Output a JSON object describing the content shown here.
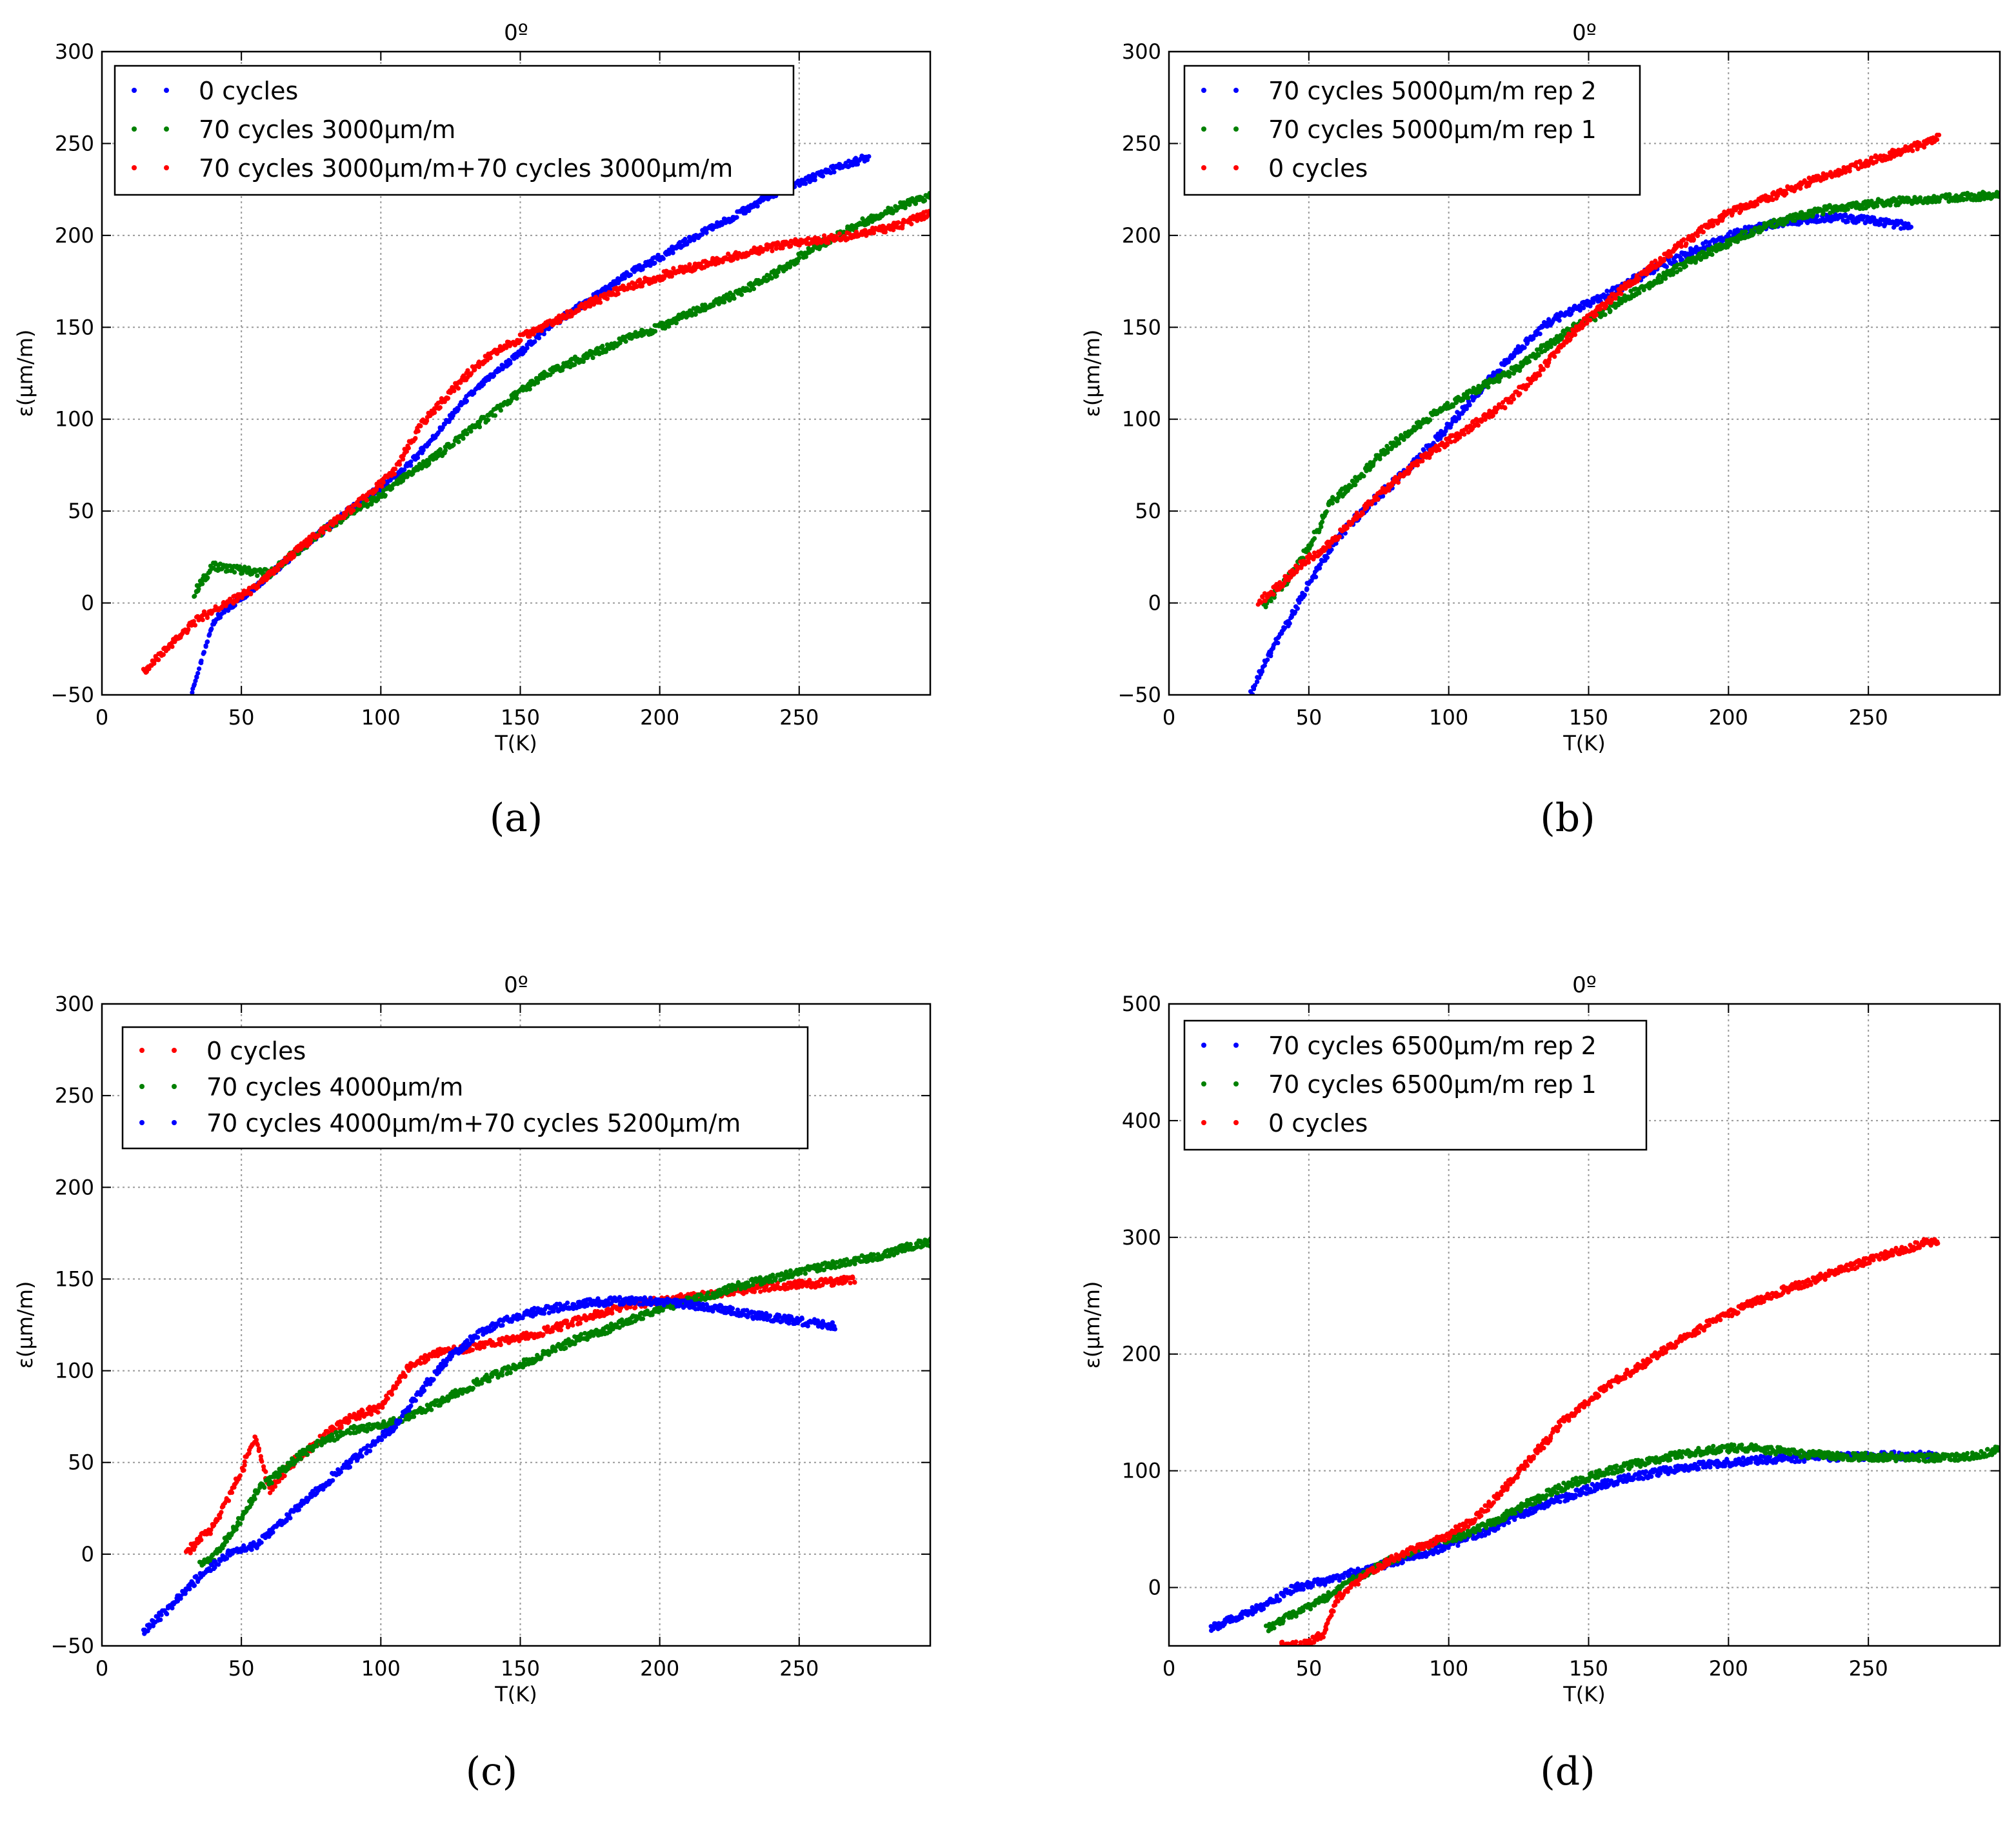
{
  "figure": {
    "panels": [
      "(a)",
      "(b)",
      "(c)",
      "(d)"
    ]
  },
  "chart_data": [
    {
      "type": "scatter",
      "panel_label": "(a)",
      "title": "0º",
      "xlabel": "T(K)",
      "ylabel": "ε(μm/m)",
      "xlim": [
        0,
        297
      ],
      "ylim": [
        -50,
        300
      ],
      "xticks": [
        0,
        50,
        100,
        150,
        200,
        250
      ],
      "yticks": [
        -50,
        0,
        50,
        100,
        150,
        200,
        250,
        300
      ],
      "grid": true,
      "legend_position": "top-left",
      "series": [
        {
          "name": "0 cycles",
          "color": "#0000ff",
          "x": [
            32,
            40,
            50,
            60,
            70,
            80,
            90,
            100,
            110,
            120,
            130,
            140,
            150,
            160,
            170,
            180,
            190,
            200,
            210,
            220,
            230,
            240,
            250,
            260,
            270,
            275
          ],
          "y": [
            -50,
            -10,
            3,
            15,
            28,
            40,
            52,
            63,
            75,
            92,
            110,
            124,
            136,
            150,
            160,
            170,
            180,
            188,
            197,
            205,
            213,
            222,
            228,
            235,
            240,
            243
          ]
        },
        {
          "name": "70 cycles 3000μm/m",
          "color": "#008000",
          "x": [
            33,
            40,
            50,
            60,
            70,
            80,
            90,
            100,
            110,
            120,
            130,
            140,
            150,
            160,
            170,
            180,
            190,
            200,
            210,
            220,
            230,
            240,
            250,
            260,
            270,
            280,
            290,
            297
          ],
          "y": [
            5,
            20,
            18,
            16,
            28,
            40,
            50,
            58,
            70,
            80,
            92,
            103,
            115,
            125,
            132,
            138,
            145,
            150,
            157,
            163,
            170,
            178,
            188,
            197,
            205,
            212,
            218,
            221
          ]
        },
        {
          "name": "70 cycles 3000μm/m+70 cycles 3000μm/m",
          "color": "#ff0000",
          "x": [
            15,
            25,
            35,
            45,
            55,
            65,
            75,
            85,
            95,
            105,
            115,
            125,
            135,
            145,
            155,
            165,
            175,
            185,
            195,
            205,
            215,
            225,
            235,
            245,
            255,
            265,
            275,
            285,
            297
          ],
          "y": [
            -38,
            -22,
            -8,
            0,
            8,
            22,
            35,
            46,
            58,
            72,
            98,
            115,
            130,
            140,
            148,
            155,
            163,
            170,
            175,
            180,
            184,
            188,
            192,
            195,
            197,
            199,
            202,
            205,
            212
          ]
        }
      ]
    },
    {
      "type": "scatter",
      "panel_label": "(b)",
      "title": "0º",
      "xlabel": "T(K)",
      "ylabel": "ε(μm/m)",
      "xlim": [
        0,
        297
      ],
      "ylim": [
        -50,
        300
      ],
      "xticks": [
        0,
        50,
        100,
        150,
        200,
        250
      ],
      "yticks": [
        -50,
        0,
        50,
        100,
        150,
        200,
        250,
        300
      ],
      "grid": true,
      "legend_position": "top-left",
      "series": [
        {
          "name": "70 cycles 5000μm/m rep 2",
          "color": "#0000ff",
          "x": [
            29,
            35,
            42,
            50,
            58,
            66,
            75,
            85,
            95,
            105,
            115,
            125,
            135,
            145,
            155,
            165,
            175,
            185,
            195,
            205,
            215,
            225,
            235,
            245,
            255,
            265
          ],
          "y": [
            -50,
            -30,
            -12,
            10,
            30,
            45,
            58,
            72,
            88,
            105,
            122,
            138,
            152,
            160,
            166,
            175,
            183,
            190,
            197,
            202,
            206,
            208,
            210,
            209,
            207,
            205
          ]
        },
        {
          "name": "70 cycles 5000μm/m rep 1",
          "color": "#008000",
          "x": [
            34,
            42,
            50,
            58,
            66,
            75,
            85,
            95,
            105,
            115,
            125,
            135,
            145,
            155,
            165,
            175,
            185,
            195,
            205,
            215,
            225,
            235,
            245,
            255,
            265,
            275,
            285,
            297
          ],
          "y": [
            -2,
            12,
            30,
            55,
            65,
            80,
            92,
            103,
            112,
            120,
            128,
            140,
            150,
            158,
            168,
            176,
            185,
            192,
            200,
            206,
            210,
            214,
            216,
            218,
            219,
            220,
            221,
            222
          ]
        },
        {
          "name": "0 cycles",
          "color": "#ff0000",
          "x": [
            32,
            40,
            48,
            56,
            64,
            72,
            80,
            90,
            100,
            110,
            120,
            130,
            140,
            150,
            160,
            170,
            180,
            190,
            200,
            210,
            220,
            230,
            240,
            250,
            260,
            270,
            275
          ],
          "y": [
            0,
            10,
            22,
            30,
            42,
            55,
            65,
            78,
            88,
            98,
            108,
            122,
            140,
            155,
            168,
            180,
            192,
            202,
            212,
            218,
            224,
            230,
            235,
            240,
            245,
            250,
            253
          ]
        }
      ]
    },
    {
      "type": "scatter",
      "panel_label": "(c)",
      "title": "0º",
      "xlabel": "T(K)",
      "ylabel": "ε(μm/m)",
      "xlim": [
        0,
        297
      ],
      "ylim": [
        -50,
        300
      ],
      "xticks": [
        0,
        50,
        100,
        150,
        200,
        250
      ],
      "yticks": [
        -50,
        0,
        50,
        100,
        150,
        200,
        250,
        300
      ],
      "grid": true,
      "legend_position": "top-left",
      "series": [
        {
          "name": "0 cycles",
          "color": "#ff0000",
          "x": [
            30,
            35,
            40,
            45,
            50,
            55,
            60,
            70,
            80,
            90,
            100,
            110,
            120,
            130,
            140,
            150,
            160,
            170,
            180,
            190,
            200,
            210,
            220,
            230,
            240,
            250,
            260,
            270
          ],
          "y": [
            0,
            8,
            15,
            30,
            45,
            65,
            35,
            52,
            65,
            75,
            80,
            102,
            110,
            112,
            115,
            118,
            122,
            127,
            132,
            136,
            138,
            140,
            142,
            144,
            146,
            147,
            148,
            150
          ]
        },
        {
          "name": "70 cycles 4000μm/m",
          "color": "#008000",
          "x": [
            35,
            40,
            48,
            56,
            64,
            72,
            80,
            90,
            100,
            110,
            120,
            130,
            140,
            150,
            160,
            170,
            180,
            190,
            200,
            210,
            220,
            230,
            240,
            250,
            260,
            270,
            280,
            290,
            297
          ],
          "y": [
            -5,
            -2,
            15,
            35,
            45,
            55,
            62,
            68,
            70,
            75,
            82,
            90,
            97,
            103,
            110,
            117,
            122,
            128,
            134,
            138,
            142,
            147,
            150,
            154,
            157,
            160,
            163,
            168,
            170
          ]
        },
        {
          "name": "70 cycles 4000μm/m+70 cycles 5200μm/m",
          "color": "#0000ff",
          "x": [
            15,
            25,
            35,
            45,
            55,
            65,
            75,
            85,
            95,
            105,
            115,
            125,
            135,
            145,
            155,
            165,
            175,
            185,
            195,
            205,
            215,
            225,
            235,
            245,
            255,
            263
          ],
          "y": [
            -42,
            -28,
            -12,
            0,
            5,
            18,
            32,
            45,
            57,
            70,
            90,
            108,
            120,
            128,
            132,
            135,
            137,
            138,
            138,
            137,
            135,
            133,
            130,
            128,
            126,
            124
          ]
        }
      ]
    },
    {
      "type": "scatter",
      "panel_label": "(d)",
      "title": "0º",
      "xlabel": "T(K)",
      "ylabel": "ε(μm/m)",
      "xlim": [
        0,
        297
      ],
      "ylim": [
        -50,
        500
      ],
      "xticks": [
        0,
        50,
        100,
        150,
        200,
        250
      ],
      "yticks": [
        0,
        100,
        200,
        300,
        400,
        500
      ],
      "grid": true,
      "legend_position": "top-left",
      "series": [
        {
          "name": "70 cycles 6500μm/m rep 2",
          "color": "#0000ff",
          "x": [
            15,
            25,
            35,
            45,
            55,
            65,
            75,
            85,
            95,
            105,
            115,
            125,
            135,
            145,
            155,
            165,
            175,
            185,
            195,
            205,
            215,
            225,
            235,
            245,
            255,
            265,
            275
          ],
          "y": [
            -35,
            -25,
            -15,
            0,
            5,
            12,
            18,
            25,
            32,
            40,
            50,
            62,
            72,
            80,
            88,
            94,
            99,
            103,
            106,
            108,
            110,
            111,
            112,
            112,
            113,
            113,
            113
          ]
        },
        {
          "name": "70 cycles 6500μm/m rep 1",
          "color": "#008000",
          "x": [
            35,
            45,
            55,
            65,
            75,
            85,
            95,
            105,
            115,
            125,
            135,
            145,
            155,
            165,
            175,
            185,
            195,
            205,
            215,
            225,
            235,
            245,
            255,
            265,
            275,
            285,
            297
          ],
          "y": [
            -35,
            -22,
            -10,
            5,
            18,
            30,
            38,
            45,
            55,
            68,
            80,
            90,
            98,
            105,
            110,
            115,
            118,
            120,
            118,
            115,
            113,
            112,
            112,
            111,
            111,
            112,
            118
          ]
        },
        {
          "name": "0 cycles",
          "color": "#ff0000",
          "x": [
            40,
            50,
            55,
            60,
            70,
            80,
            90,
            100,
            110,
            120,
            130,
            140,
            150,
            160,
            170,
            180,
            190,
            200,
            210,
            220,
            230,
            240,
            250,
            260,
            270,
            275
          ],
          "y": [
            -50,
            -48,
            -40,
            -10,
            10,
            25,
            35,
            45,
            60,
            85,
            112,
            140,
            160,
            178,
            192,
            208,
            222,
            235,
            245,
            255,
            263,
            272,
            280,
            288,
            295,
            298
          ]
        }
      ]
    }
  ]
}
